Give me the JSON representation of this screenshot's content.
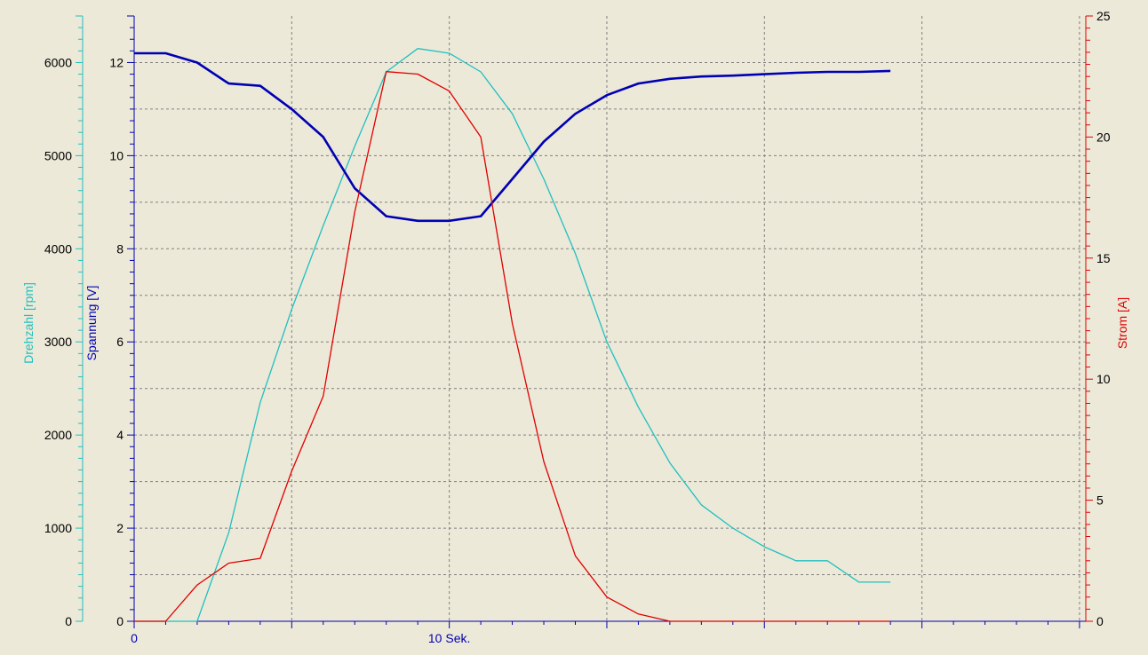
{
  "chart_data": {
    "type": "line",
    "xlabel": "Sek.",
    "x_tick_labels": [
      {
        "x": 0,
        "label": "0"
      },
      {
        "x": 10,
        "label": "10 Sek."
      }
    ],
    "xlim": [
      0,
      30.2
    ],
    "grid": true,
    "colors": {
      "background": "#ece9d8",
      "grid": "#808080",
      "drehzahl": "#20c0c0",
      "spannung": "#0000b4",
      "strom": "#e00000"
    },
    "axes": {
      "drehzahl": {
        "label": "Drehzahl [rpm]",
        "ylim": [
          0,
          6500
        ],
        "ticks": [
          0,
          1000,
          2000,
          3000,
          4000,
          5000,
          6000
        ],
        "position": "left-outer",
        "color": "#20c0c0"
      },
      "spannung": {
        "label": "Spannung [V]",
        "ylim": [
          0,
          13
        ],
        "ticks": [
          0,
          2,
          4,
          6,
          8,
          10,
          12
        ],
        "position": "left-inner",
        "color": "#0000b4"
      },
      "strom": {
        "label": "Strom [A]",
        "ylim": [
          0,
          25
        ],
        "ticks": [
          0,
          5,
          10,
          15,
          20,
          25
        ],
        "position": "right",
        "color": "#e00000"
      }
    },
    "series": [
      {
        "name": "Drehzahl [rpm]",
        "axis": "drehzahl",
        "x": [
          0,
          1,
          2,
          3,
          4,
          5,
          6,
          7,
          8,
          9,
          10,
          11,
          12,
          13,
          14,
          15,
          16,
          17,
          18,
          19,
          20,
          21,
          22,
          23,
          24
        ],
        "y": [
          0,
          0,
          0,
          950,
          2350,
          3350,
          4250,
          5100,
          5900,
          6150,
          6100,
          5900,
          5450,
          4750,
          3950,
          3000,
          2300,
          1700,
          1250,
          1000,
          800,
          650,
          650,
          420,
          420
        ]
      },
      {
        "name": "Spannung [V]",
        "axis": "spannung",
        "x": [
          0,
          1,
          2,
          3,
          4,
          5,
          6,
          7,
          8,
          9,
          10,
          11,
          12,
          13,
          14,
          15,
          16,
          17,
          18,
          19,
          20,
          21,
          22,
          23,
          24
        ],
        "y": [
          12.2,
          12.2,
          12.0,
          11.55,
          11.5,
          11.0,
          10.4,
          9.3,
          8.7,
          8.6,
          8.6,
          8.7,
          9.5,
          10.3,
          10.9,
          11.3,
          11.55,
          11.65,
          11.7,
          11.72,
          11.75,
          11.78,
          11.8,
          11.8,
          11.82
        ]
      },
      {
        "name": "Strom [A]",
        "axis": "strom",
        "x": [
          0,
          1,
          2,
          3,
          4,
          5,
          6,
          7,
          8,
          9,
          10,
          11,
          12,
          13,
          14,
          15,
          16,
          17,
          18,
          19,
          20,
          21,
          22,
          23,
          24
        ],
        "y": [
          0,
          0,
          1.5,
          2.4,
          2.6,
          6.2,
          9.3,
          16.9,
          22.7,
          22.6,
          21.9,
          20.0,
          12.3,
          6.6,
          2.7,
          1.0,
          0.3,
          0,
          0,
          0,
          0,
          0,
          0,
          0,
          0
        ]
      }
    ]
  }
}
